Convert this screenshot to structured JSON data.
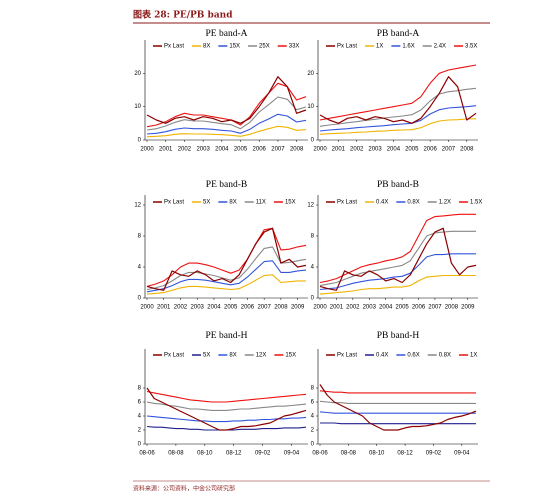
{
  "header": {
    "title": "图表 28: PE/PB band"
  },
  "footer": {
    "source": "资料来源：公司资料，中金公司研究部"
  },
  "chart_data": [
    {
      "type": "line",
      "title": "PE band-A",
      "categories": [
        "2000",
        null,
        "2001",
        null,
        "2002",
        null,
        "2003",
        null,
        "2004",
        null,
        "2005",
        null,
        "2006",
        null,
        "2007",
        null,
        "2008",
        null
      ],
      "ylim": [
        0,
        24
      ],
      "yticks": [
        0,
        10,
        20
      ],
      "series": [
        {
          "name": "Px Last",
          "color": "#8b0000",
          "values": [
            7.5,
            6,
            5,
            6.5,
            7,
            6,
            7,
            6.5,
            5.5,
            6,
            5,
            6.5,
            10,
            14,
            19,
            16,
            8,
            9
          ]
        },
        {
          "name": "8X",
          "color": "#f0b400",
          "values": [
            1,
            1.1,
            1.3,
            1.7,
            1.9,
            1.8,
            1.8,
            1.7,
            1.6,
            1.4,
            1.1,
            1.7,
            2.6,
            3.4,
            4.1,
            3.8,
            2.9,
            3.1
          ]
        },
        {
          "name": "15X",
          "color": "#3355dd",
          "values": [
            1.8,
            2,
            2.5,
            3.2,
            3.6,
            3.4,
            3.4,
            3.2,
            2.9,
            2.7,
            2,
            3.2,
            5,
            6.3,
            7.7,
            7.2,
            5.4,
            5.9
          ]
        },
        {
          "name": "25X",
          "color": "#888888",
          "values": [
            3,
            3.4,
            4.2,
            5.3,
            6.1,
            5.7,
            5.7,
            5.3,
            4.9,
            4.6,
            3.4,
            5.3,
            8.4,
            10.6,
            12.9,
            12.2,
            9.1,
            9.9
          ]
        },
        {
          "name": "33X",
          "color": "#ee1111",
          "values": [
            4,
            4.5,
            5.5,
            7,
            8,
            7.5,
            7.5,
            7,
            6.5,
            6,
            4.5,
            7,
            11,
            14,
            17,
            16,
            12,
            13
          ]
        }
      ]
    },
    {
      "type": "line",
      "title": "PB band-A",
      "categories": [
        "2000",
        null,
        "2001",
        null,
        "2002",
        null,
        "2003",
        null,
        "2004",
        null,
        "2005",
        null,
        "2006",
        null,
        "2007",
        null,
        "2008",
        null
      ],
      "ylim": [
        0,
        24
      ],
      "yticks": [
        0,
        10,
        20
      ],
      "series": [
        {
          "name": "Px Last",
          "color": "#8b0000",
          "values": [
            7.5,
            6,
            5,
            6.5,
            7,
            6,
            7,
            6.5,
            5.5,
            6,
            5,
            6.5,
            10,
            14,
            19,
            16,
            6,
            8
          ]
        },
        {
          "name": "1X",
          "color": "#f0b400",
          "values": [
            1.7,
            1.9,
            2,
            2.1,
            2.3,
            2.4,
            2.6,
            2.7,
            2.9,
            3,
            3.1,
            3.7,
            4.9,
            5.7,
            6,
            6.1,
            6.3,
            6.4
          ]
        },
        {
          "name": "1.6X",
          "color": "#3355dd",
          "values": [
            2.7,
            3,
            3.2,
            3.4,
            3.7,
            3.9,
            4.1,
            4.3,
            4.6,
            4.8,
            5,
            5.9,
            7.8,
            9.1,
            9.6,
            9.8,
            10,
            10.3
          ]
        },
        {
          "name": "2.4X",
          "color": "#888888",
          "values": [
            4.1,
            4.5,
            4.8,
            5.2,
            5.5,
            5.9,
            6.2,
            6.6,
            6.9,
            7.2,
            7.6,
            9,
            11.7,
            13.8,
            14.5,
            14.8,
            15.2,
            15.5
          ]
        },
        {
          "name": "3.5X",
          "color": "#ee1111",
          "values": [
            6,
            6.5,
            7,
            7.5,
            8,
            8.5,
            9,
            9.5,
            10,
            10.5,
            11,
            13,
            17,
            20,
            21,
            21.5,
            22,
            22.5
          ]
        }
      ]
    },
    {
      "type": "line",
      "title": "PE band-B",
      "categories": [
        "2000",
        null,
        "2001",
        null,
        "2002",
        null,
        "2003",
        null,
        "2004",
        null,
        "2005",
        null,
        "2006",
        null,
        "2007",
        null,
        "2008",
        null,
        "2009",
        null
      ],
      "ylim": [
        0,
        12
      ],
      "yticks": [
        0,
        4,
        8,
        12
      ],
      "series": [
        {
          "name": "Px Last",
          "color": "#8b0000",
          "values": [
            1.5,
            1.2,
            1,
            3.5,
            3,
            2.8,
            3.5,
            3,
            2.2,
            2.5,
            2,
            3,
            5,
            7,
            8.5,
            9,
            4.5,
            5,
            4,
            4.2
          ]
        },
        {
          "name": "5X",
          "color": "#f0b400",
          "values": [
            0.5,
            0.6,
            0.7,
            1,
            1.3,
            1.5,
            1.5,
            1.4,
            1.3,
            1.2,
            1.1,
            1.2,
            1.7,
            2.3,
            2.9,
            3,
            2,
            2.1,
            2.2,
            2.2
          ]
        },
        {
          "name": "8X",
          "color": "#3355dd",
          "values": [
            0.8,
            1,
            1.2,
            1.6,
            2.1,
            2.4,
            2.4,
            2.3,
            2.1,
            1.9,
            1.7,
            1.9,
            2.7,
            3.7,
            4.7,
            4.8,
            3.3,
            3.3,
            3.5,
            3.6
          ]
        },
        {
          "name": "11X",
          "color": "#888888",
          "values": [
            1.1,
            1.3,
            1.6,
            2.2,
            2.9,
            3.3,
            3.3,
            3.1,
            2.9,
            2.6,
            2.3,
            2.6,
            3.7,
            5.1,
            6.4,
            6.6,
            4.5,
            4.6,
            4.8,
            5
          ]
        },
        {
          "name": "15X",
          "color": "#ee1111",
          "values": [
            1.5,
            1.8,
            2.2,
            3,
            4,
            4.5,
            4.5,
            4.3,
            4,
            3.6,
            3.2,
            3.6,
            5,
            7,
            8.8,
            9,
            6.2,
            6.3,
            6.6,
            6.8
          ]
        }
      ]
    },
    {
      "type": "line",
      "title": "PB band-B",
      "categories": [
        "2000",
        null,
        "2001",
        null,
        "2002",
        null,
        "2003",
        null,
        "2004",
        null,
        "2005",
        null,
        "2006",
        null,
        "2007",
        null,
        "2008",
        null,
        "2009",
        null
      ],
      "ylim": [
        0,
        12
      ],
      "yticks": [
        0,
        4,
        8,
        12
      ],
      "series": [
        {
          "name": "Px Last",
          "color": "#8b0000",
          "values": [
            1.5,
            1.2,
            1,
            3.5,
            3,
            2.8,
            3.5,
            3,
            2.2,
            2.5,
            2,
            3,
            5,
            7,
            8.5,
            9,
            4.5,
            3,
            4,
            4.2
          ]
        },
        {
          "name": "0.4X",
          "color": "#f0b400",
          "values": [
            0.5,
            0.6,
            0.7,
            0.8,
            0.9,
            1.1,
            1.2,
            1.2,
            1.3,
            1.4,
            1.4,
            1.6,
            2.2,
            2.7,
            2.8,
            2.9,
            2.9,
            2.9,
            2.9,
            2.9
          ]
        },
        {
          "name": "0.8X",
          "color": "#3355dd",
          "values": [
            1.1,
            1.2,
            1.3,
            1.6,
            1.9,
            2.1,
            2.3,
            2.4,
            2.5,
            2.7,
            2.8,
            3.2,
            4.2,
            5.3,
            5.6,
            5.6,
            5.7,
            5.7,
            5.7,
            5.7
          ]
        },
        {
          "name": "1.2X",
          "color": "#888888",
          "values": [
            1.6,
            1.8,
            2,
            2.4,
            2.8,
            3.2,
            3.4,
            3.6,
            3.8,
            4,
            4.2,
            4.8,
            6.4,
            8,
            8.4,
            8.5,
            8.6,
            8.6,
            8.6,
            8.6
          ]
        },
        {
          "name": "1.5X",
          "color": "#ee1111",
          "values": [
            2,
            2.2,
            2.5,
            3,
            3.5,
            4,
            4.3,
            4.5,
            4.8,
            5,
            5.3,
            6,
            8,
            10,
            10.5,
            10.6,
            10.7,
            10.8,
            10.8,
            10.8
          ]
        }
      ]
    },
    {
      "type": "line",
      "title": "PE band-H",
      "categories": [
        "08-06",
        null,
        null,
        null,
        "08-08",
        null,
        null,
        null,
        "08-10",
        null,
        null,
        null,
        "08-12",
        null,
        null,
        null,
        "09-02",
        null,
        null,
        null,
        "09-04",
        null,
        null
      ],
      "ylim": [
        0,
        9
      ],
      "yticks": [
        0,
        2,
        4,
        6,
        8
      ],
      "series": [
        {
          "name": "Px Last",
          "color": "#8b0000",
          "values": [
            8,
            6.5,
            6,
            5.5,
            5,
            4.5,
            4,
            3.5,
            3,
            2.5,
            2,
            2,
            2.2,
            2.5,
            2.5,
            2.6,
            2.8,
            3,
            3.5,
            4,
            4.2,
            4.5,
            4.8
          ]
        },
        {
          "name": "5X",
          "color": "#1f1f8f",
          "values": [
            2.5,
            2.4,
            2.4,
            2.3,
            2.2,
            2.2,
            2.1,
            2.1,
            2,
            2,
            2,
            2,
            2,
            2.1,
            2.1,
            2.1,
            2.2,
            2.2,
            2.2,
            2.3,
            2.3,
            2.3,
            2.4
          ]
        },
        {
          "name": "8X",
          "color": "#3355dd",
          "values": [
            4,
            3.9,
            3.8,
            3.7,
            3.6,
            3.5,
            3.4,
            3.3,
            3.3,
            3.2,
            3.2,
            3.2,
            3.3,
            3.3,
            3.4,
            3.4,
            3.5,
            3.5,
            3.6,
            3.6,
            3.7,
            3.7,
            3.8
          ]
        },
        {
          "name": "12X",
          "color": "#888888",
          "values": [
            6,
            5.8,
            5.7,
            5.5,
            5.4,
            5.2,
            5,
            5,
            4.9,
            4.8,
            4.8,
            4.8,
            4.9,
            5,
            5,
            5.1,
            5.2,
            5.3,
            5.4,
            5.4,
            5.5,
            5.6,
            5.7
          ]
        },
        {
          "name": "15X",
          "color": "#ee1111",
          "values": [
            7.5,
            7.3,
            7.1,
            6.9,
            6.7,
            6.5,
            6.3,
            6.2,
            6.1,
            6,
            6,
            6,
            6.1,
            6.2,
            6.3,
            6.4,
            6.5,
            6.6,
            6.7,
            6.8,
            6.9,
            7,
            7.1
          ]
        }
      ]
    },
    {
      "type": "line",
      "title": "PB band-H",
      "categories": [
        "08-06",
        null,
        null,
        null,
        "08-08",
        null,
        null,
        null,
        "08-10",
        null,
        null,
        null,
        "08-12",
        null,
        null,
        null,
        "09-02",
        null,
        null,
        null,
        "09-04",
        null,
        null
      ],
      "ylim": [
        0,
        9
      ],
      "yticks": [
        0,
        2,
        4,
        6,
        8
      ],
      "series": [
        {
          "name": "Px Last",
          "color": "#8b0000",
          "values": [
            8.5,
            7,
            6,
            5.5,
            5,
            4.5,
            4,
            3,
            2.5,
            2,
            2,
            2,
            2.3,
            2.5,
            2.5,
            2.6,
            2.8,
            3,
            3.5,
            3.8,
            4,
            4.3,
            4.7
          ]
        },
        {
          "name": "0.4X",
          "color": "#1f1f8f",
          "values": [
            3,
            3,
            3,
            2.9,
            2.9,
            2.9,
            2.9,
            2.9,
            2.9,
            2.9,
            2.9,
            2.9,
            2.9,
            2.9,
            2.9,
            2.9,
            2.9,
            2.9,
            2.9,
            2.9,
            2.9,
            2.9,
            2.9
          ]
        },
        {
          "name": "0.6X",
          "color": "#3355dd",
          "values": [
            4.6,
            4.5,
            4.4,
            4.4,
            4.4,
            4.4,
            4.4,
            4.4,
            4.4,
            4.4,
            4.4,
            4.4,
            4.4,
            4.4,
            4.4,
            4.4,
            4.4,
            4.4,
            4.4,
            4.4,
            4.4,
            4.4,
            4.4
          ]
        },
        {
          "name": "0.8X",
          "color": "#888888",
          "values": [
            6.1,
            6,
            5.9,
            5.9,
            5.8,
            5.8,
            5.8,
            5.8,
            5.8,
            5.8,
            5.8,
            5.8,
            5.8,
            5.8,
            5.8,
            5.8,
            5.8,
            5.8,
            5.8,
            5.8,
            5.8,
            5.8,
            5.8
          ]
        },
        {
          "name": "1X",
          "color": "#ee1111",
          "values": [
            7.6,
            7.5,
            7.4,
            7.4,
            7.3,
            7.3,
            7.3,
            7.3,
            7.3,
            7.3,
            7.3,
            7.3,
            7.3,
            7.3,
            7.3,
            7.3,
            7.3,
            7.3,
            7.3,
            7.3,
            7.3,
            7.3,
            7.3
          ]
        }
      ]
    }
  ]
}
